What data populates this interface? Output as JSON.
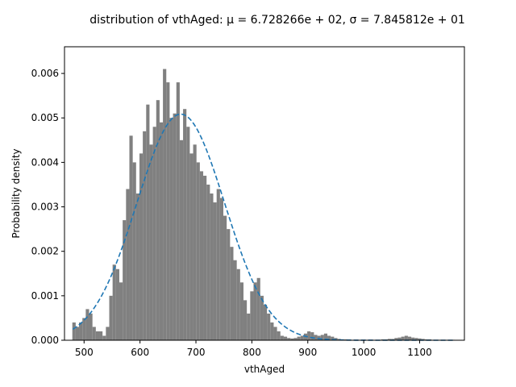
{
  "chart_data": {
    "type": "bar",
    "title": "distribution of vthAged: μ = 6.728266e + 02, σ = 7.845812e + 01",
    "xlabel": "vthAged",
    "ylabel": "Probability density",
    "xlim": [
      465,
      1180
    ],
    "ylim": [
      0,
      0.0066
    ],
    "x_ticks": [
      500,
      600,
      700,
      800,
      900,
      1000,
      1100
    ],
    "x_tick_labels": [
      "500",
      "600",
      "700",
      "800",
      "900",
      "1000",
      "1100"
    ],
    "y_ticks": [
      0,
      0.001,
      0.002,
      0.003,
      0.004,
      0.005,
      0.006
    ],
    "y_tick_labels": [
      "0.000",
      "0.001",
      "0.002",
      "0.003",
      "0.004",
      "0.005",
      "0.006"
    ],
    "grid": false,
    "histogram": {
      "color": "#808080",
      "bin_centers": [
        482,
        488,
        494,
        500,
        506,
        512,
        518,
        524,
        530,
        536,
        542,
        548,
        554,
        560,
        566,
        572,
        578,
        584,
        590,
        596,
        602,
        608,
        614,
        620,
        626,
        632,
        638,
        644,
        650,
        656,
        662,
        668,
        674,
        680,
        686,
        692,
        698,
        704,
        710,
        716,
        722,
        728,
        734,
        740,
        746,
        752,
        758,
        764,
        770,
        776,
        782,
        788,
        794,
        800,
        806,
        812,
        818,
        824,
        830,
        836,
        842,
        848,
        854,
        860,
        866,
        872,
        878,
        884,
        890,
        896,
        902,
        908,
        914,
        920,
        926,
        932,
        938,
        944,
        950,
        956,
        962,
        968,
        974,
        980,
        986,
        992,
        998,
        1004,
        1010,
        1016,
        1022,
        1028,
        1034,
        1040,
        1046,
        1052,
        1058,
        1064,
        1070,
        1076,
        1082,
        1088,
        1094,
        1100,
        1106,
        1112,
        1118,
        1124,
        1130,
        1136,
        1142,
        1148,
        1154,
        1160
      ],
      "bin_width": 6,
      "densities": [
        0.0004,
        0.0003,
        0.0004,
        0.0005,
        0.0007,
        0.0006,
        0.0003,
        0.0002,
        0.0002,
        0.0001,
        0.0003,
        0.001,
        0.0017,
        0.0016,
        0.0013,
        0.0027,
        0.0034,
        0.0046,
        0.004,
        0.0033,
        0.0042,
        0.0047,
        0.0053,
        0.0044,
        0.0048,
        0.0054,
        0.0049,
        0.0061,
        0.0058,
        0.005,
        0.0051,
        0.0058,
        0.0045,
        0.0052,
        0.0048,
        0.0042,
        0.0044,
        0.004,
        0.0038,
        0.0037,
        0.0035,
        0.0033,
        0.0031,
        0.0034,
        0.0032,
        0.0028,
        0.0025,
        0.0021,
        0.0018,
        0.0016,
        0.0013,
        0.0009,
        0.0006,
        0.0011,
        0.0013,
        0.0014,
        0.001,
        0.0008,
        0.0006,
        0.0004,
        0.0003,
        0.0002,
        0.0001,
        8e-05,
        5e-05,
        4e-05,
        5e-05,
        8e-05,
        0.0001,
        0.00015,
        0.0002,
        0.00018,
        0.00012,
        0.0001,
        0.00012,
        0.00015,
        0.0001,
        8e-05,
        5e-05,
        3e-05,
        2e-05,
        2e-05,
        1e-05,
        1e-05,
        1e-05,
        1e-05,
        1e-05,
        1e-05,
        1e-05,
        1e-05,
        1e-05,
        1e-05,
        2e-05,
        2e-05,
        3e-05,
        3e-05,
        5e-05,
        6e-05,
        8e-05,
        0.0001,
        8e-05,
        6e-05,
        5e-05,
        4e-05,
        3e-05,
        2e-05,
        2e-05,
        1e-05,
        1e-05,
        1e-05,
        1e-05,
        1e-05,
        1e-05,
        1e-05
      ]
    },
    "fit_curve": {
      "style": "dashed",
      "color": "#1f77b4",
      "distribution": "normal",
      "mu": 672.8266,
      "sigma": 78.45812,
      "x_range": [
        480,
        1162
      ]
    }
  }
}
